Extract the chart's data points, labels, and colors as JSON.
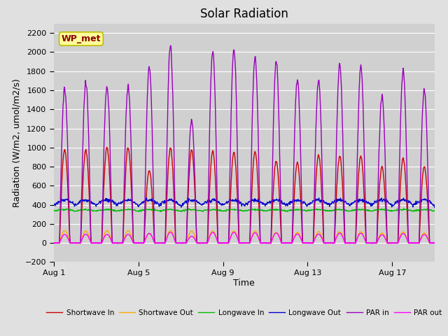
{
  "title": "Solar Radiation",
  "xlabel": "Time",
  "ylabel": "Radiation (W/m2, umol/m2/s)",
  "ylim": [
    -200,
    2300
  ],
  "yticks": [
    -200,
    0,
    200,
    400,
    600,
    800,
    1000,
    1200,
    1400,
    1600,
    1800,
    2000,
    2200
  ],
  "xtick_labels": [
    "Aug 1",
    "Aug 5",
    "Aug 9",
    "Aug 13",
    "Aug 17"
  ],
  "xtick_positions": [
    0,
    4,
    8,
    12,
    16
  ],
  "n_days": 18,
  "annotation_text": "WP_met",
  "colors": {
    "shortwave_in": "#cc0000",
    "shortwave_out": "#ffaa00",
    "longwave_in": "#00bb00",
    "longwave_out": "#0000cc",
    "par_in": "#9900bb",
    "par_out": "#ff00ff"
  },
  "background_color": "#e0e0e0",
  "plot_bg_color": "#d0d0d0",
  "legend_labels": [
    "Shortwave In",
    "Shortwave Out",
    "Longwave In",
    "Longwave Out",
    "PAR in",
    "PAR out"
  ],
  "shortwave_in_peaks": [
    980,
    970,
    1000,
    1000,
    760,
    1000,
    970,
    960,
    950,
    960,
    860,
    840,
    920,
    910,
    910,
    800,
    890,
    800
  ],
  "par_in_peaks": [
    1620,
    1680,
    1640,
    1640,
    1840,
    2060,
    1280,
    2020,
    2030,
    1950,
    1900,
    1720,
    1700,
    1870,
    1850,
    1550,
    1800,
    1610
  ],
  "title_fontsize": 12,
  "label_fontsize": 9,
  "tick_fontsize": 8,
  "line_width": 1.0
}
